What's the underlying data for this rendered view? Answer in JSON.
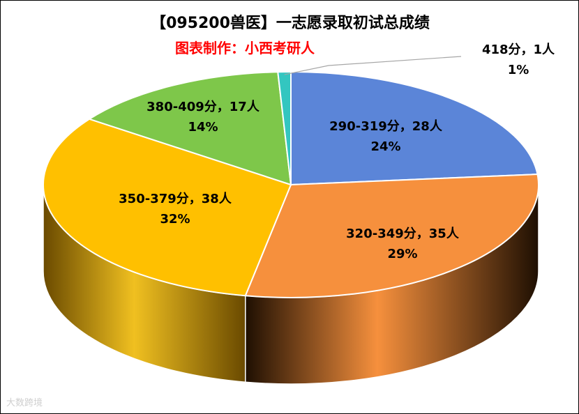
{
  "colors": {
    "title": "#000000",
    "subtitle": "#ff0000",
    "border": "#000000",
    "watermark": "#cfcfcf"
  },
  "watermark_text": "大数跨境",
  "chart_data": {
    "type": "pie",
    "style": "3d",
    "title": "【095200兽医】一志愿录取初试总成绩",
    "subtitle": "图表制作：小西考研人",
    "legend": "none",
    "slices": [
      {
        "category": "290-319分",
        "count": 28,
        "percent": 24,
        "label_line1": "290-319分，28人",
        "label_line2": "24%",
        "color": "#5b85d8",
        "side_light": "#7d9fe4",
        "side_dark": "#2a4a8f"
      },
      {
        "category": "320-349分",
        "count": 35,
        "percent": 29,
        "label_line1": "320-349分，35人",
        "label_line2": "29%",
        "color": "#f6903d",
        "side_light": "#f6903d",
        "side_dark": "#1e0f02"
      },
      {
        "category": "350-379分",
        "count": 38,
        "percent": 32,
        "label_line1": "350-379分，38人",
        "label_line2": "32%",
        "color": "#ffc000",
        "side_light": "#f0c020",
        "side_dark": "#6a4a00"
      },
      {
        "category": "380-409分",
        "count": 17,
        "percent": 14,
        "label_line1": "380-409分，17人",
        "label_line2": "14%",
        "color": "#7ec74a",
        "side_light": "#7ec74a",
        "side_dark": "#3d6e1c"
      },
      {
        "category": "418分",
        "count": 1,
        "percent": 1,
        "label_line1": "418分，1人",
        "label_line2": "1%",
        "color": "#33c6c0",
        "side_light": "#33c6c0",
        "side_dark": "#1a7a76"
      }
    ]
  }
}
